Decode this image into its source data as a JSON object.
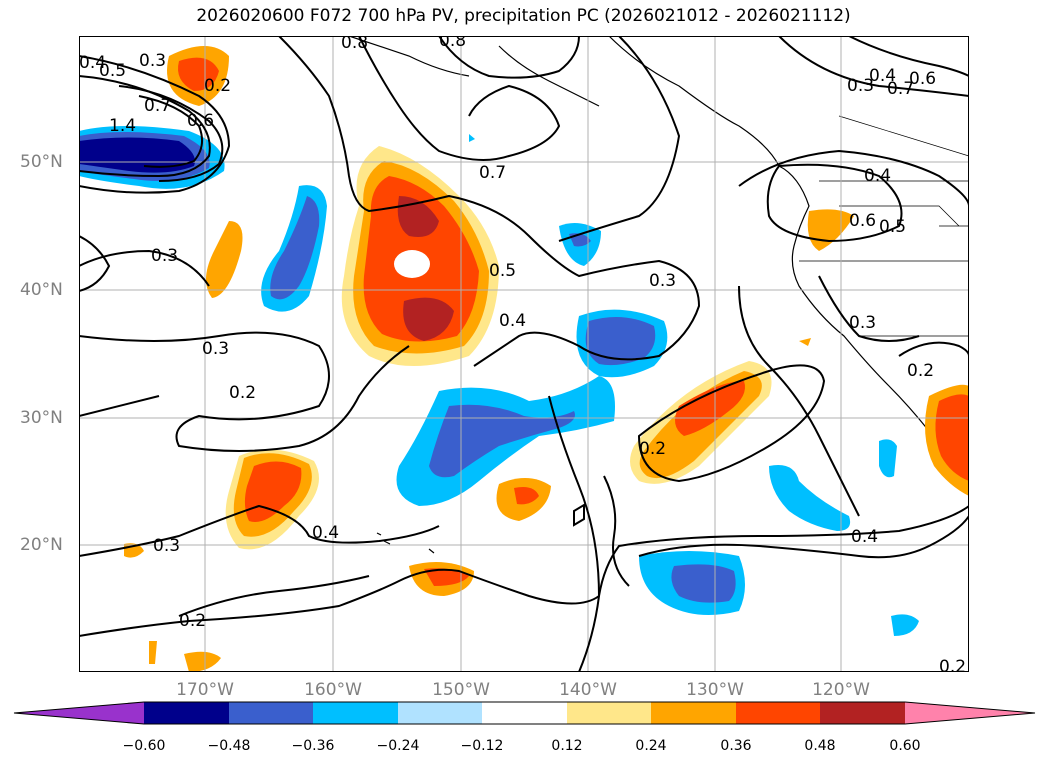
{
  "title": "2026020600 F072 700 hPa PV, precipitation PC (2026021012 - 2026021112)",
  "lat_labels": [
    "50°N",
    "40°N",
    "30°N",
    "20°N"
  ],
  "lon_labels": [
    "170°W",
    "160°W",
    "150°W",
    "140°W",
    "130°W",
    "120°W"
  ],
  "colorbar": {
    "ticks": [
      "−0.60",
      "−0.48",
      "−0.36",
      "−0.24",
      "−0.12",
      "0.12",
      "0.24",
      "0.36",
      "0.48",
      "0.60"
    ],
    "colors": [
      "#9932cc",
      "#00008b",
      "#3a5fcd",
      "#00bfff",
      "#b0e2ff",
      "#ffffff",
      "#ffe78a",
      "#ffa500",
      "#ff4500",
      "#b22222",
      "#ff82ab"
    ]
  },
  "contour_labels": [
    "0.3",
    "0.2",
    "0.8",
    "0.8",
    "0.4",
    "0.5",
    "0.7",
    "0.6",
    "1.4",
    "0.3",
    "0.7",
    "0.5",
    "0.4",
    "0.3",
    "0.4",
    "0.6",
    "0.5",
    "0.3",
    "0.3",
    "0.2",
    "0.2",
    "0.2",
    "0.4",
    "0.3",
    "0.2",
    "0.4",
    "0.2",
    "0.3",
    "0.4",
    "0.6",
    "0.7"
  ],
  "legend_colors": {
    "contour": "#000000",
    "coastline": "#000000",
    "grid": "#b0b0b0",
    "axis_labels": "#808080"
  }
}
